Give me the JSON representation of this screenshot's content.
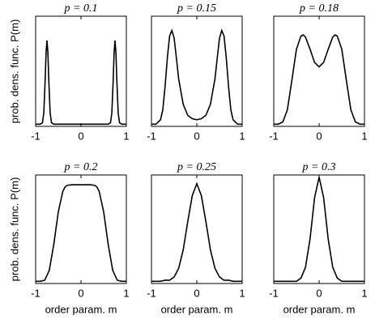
{
  "chart_data": [
    {
      "type": "line",
      "title": "p = 0.1",
      "ylabel": "prob. dens. func. P(m)",
      "x": [
        -1,
        -0.95,
        -0.9,
        -0.85,
        -0.82,
        -0.79,
        -0.77,
        -0.75,
        -0.73,
        -0.71,
        -0.68,
        -0.65,
        -0.6,
        -0.5,
        -0.3,
        0,
        0.3,
        0.5,
        0.6,
        0.65,
        0.68,
        0.71,
        0.73,
        0.75,
        0.77,
        0.79,
        0.82,
        0.85,
        0.9,
        0.95,
        1
      ],
      "values": [
        0.02,
        0.02,
        0.02,
        0.033,
        0.12,
        0.42,
        0.67,
        0.78,
        0.67,
        0.42,
        0.12,
        0.033,
        0.02,
        0.02,
        0.02,
        0.02,
        0.02,
        0.02,
        0.02,
        0.033,
        0.12,
        0.42,
        0.67,
        0.78,
        0.67,
        0.42,
        0.12,
        0.033,
        0.02,
        0.02,
        0.02
      ],
      "xlim": [
        -1,
        1
      ],
      "xticks": [
        -1,
        0,
        1
      ],
      "ylim": [
        0,
        1
      ],
      "color": "#000000"
    },
    {
      "type": "line",
      "title": "p = 0.15",
      "x": [
        -1,
        -0.9,
        -0.8,
        -0.75,
        -0.7,
        -0.65,
        -0.6,
        -0.55,
        -0.5,
        -0.45,
        -0.4,
        -0.3,
        -0.2,
        -0.1,
        0,
        0.1,
        0.2,
        0.3,
        0.4,
        0.45,
        0.5,
        0.55,
        0.6,
        0.65,
        0.7,
        0.75,
        0.8,
        0.9,
        1
      ],
      "values": [
        0.02,
        0.02,
        0.06,
        0.15,
        0.36,
        0.62,
        0.82,
        0.87,
        0.8,
        0.62,
        0.43,
        0.2,
        0.1,
        0.07,
        0.06,
        0.07,
        0.1,
        0.2,
        0.43,
        0.62,
        0.8,
        0.87,
        0.82,
        0.62,
        0.36,
        0.15,
        0.06,
        0.02,
        0.02
      ],
      "xlim": [
        -1,
        1
      ],
      "xticks": [
        -1,
        0,
        1
      ],
      "ylim": [
        0,
        1
      ],
      "color": "#000000"
    },
    {
      "type": "line",
      "title": "p = 0.18",
      "x": [
        -1,
        -0.9,
        -0.8,
        -0.7,
        -0.6,
        -0.5,
        -0.4,
        -0.35,
        -0.3,
        -0.2,
        -0.1,
        0,
        0.1,
        0.2,
        0.3,
        0.35,
        0.4,
        0.5,
        0.6,
        0.7,
        0.8,
        0.9,
        1
      ],
      "values": [
        0.02,
        0.02,
        0.04,
        0.15,
        0.42,
        0.7,
        0.82,
        0.83,
        0.81,
        0.7,
        0.58,
        0.54,
        0.58,
        0.7,
        0.81,
        0.83,
        0.82,
        0.7,
        0.42,
        0.15,
        0.04,
        0.02,
        0.02
      ],
      "xlim": [
        -1,
        1
      ],
      "xticks": [
        -1,
        0,
        1
      ],
      "ylim": [
        0,
        1
      ],
      "color": "#000000"
    },
    {
      "type": "line",
      "title": "p = 0.2",
      "ylabel": "prob. dens. func. P(m)",
      "xlabel": "order param. m",
      "x": [
        -1,
        -0.9,
        -0.8,
        -0.7,
        -0.6,
        -0.5,
        -0.4,
        -0.35,
        -0.3,
        -0.2,
        -0.1,
        0,
        0.1,
        0.2,
        0.3,
        0.35,
        0.4,
        0.5,
        0.6,
        0.7,
        0.8,
        0.9,
        1
      ],
      "values": [
        0.02,
        0.02,
        0.03,
        0.12,
        0.36,
        0.66,
        0.85,
        0.89,
        0.905,
        0.91,
        0.91,
        0.91,
        0.91,
        0.91,
        0.905,
        0.89,
        0.85,
        0.66,
        0.36,
        0.12,
        0.03,
        0.02,
        0.02
      ],
      "xlim": [
        -1,
        1
      ],
      "xticks": [
        -1,
        0,
        1
      ],
      "ylim": [
        0,
        1
      ],
      "color": "#000000"
    },
    {
      "type": "line",
      "title": "p = 0.25",
      "xlabel": "order param. m",
      "x": [
        -1,
        -0.9,
        -0.8,
        -0.7,
        -0.6,
        -0.5,
        -0.4,
        -0.3,
        -0.2,
        -0.1,
        0,
        0.1,
        0.2,
        0.3,
        0.4,
        0.5,
        0.6,
        0.7,
        0.8,
        0.9,
        1
      ],
      "values": [
        0.02,
        0.02,
        0.02,
        0.03,
        0.03,
        0.06,
        0.14,
        0.31,
        0.57,
        0.81,
        0.92,
        0.81,
        0.57,
        0.31,
        0.14,
        0.06,
        0.03,
        0.03,
        0.02,
        0.02,
        0.02
      ],
      "xlim": [
        -1,
        1
      ],
      "xticks": [
        -1,
        0,
        1
      ],
      "ylim": [
        0,
        1
      ],
      "color": "#000000"
    },
    {
      "type": "line",
      "title": "p = 0.3",
      "xlabel": "order param. m",
      "x": [
        -1,
        -0.9,
        -0.8,
        -0.7,
        -0.6,
        -0.5,
        -0.4,
        -0.3,
        -0.2,
        -0.1,
        0,
        0.1,
        0.2,
        0.3,
        0.4,
        0.5,
        0.6,
        0.7,
        0.8,
        0.9,
        1
      ],
      "values": [
        0.02,
        0.02,
        0.02,
        0.02,
        0.02,
        0.02,
        0.05,
        0.15,
        0.41,
        0.79,
        0.98,
        0.79,
        0.41,
        0.15,
        0.05,
        0.02,
        0.02,
        0.02,
        0.02,
        0.02,
        0.02
      ],
      "xlim": [
        -1,
        1
      ],
      "xticks": [
        -1,
        0,
        1
      ],
      "ylim": [
        0,
        1
      ],
      "color": "#000000"
    }
  ]
}
